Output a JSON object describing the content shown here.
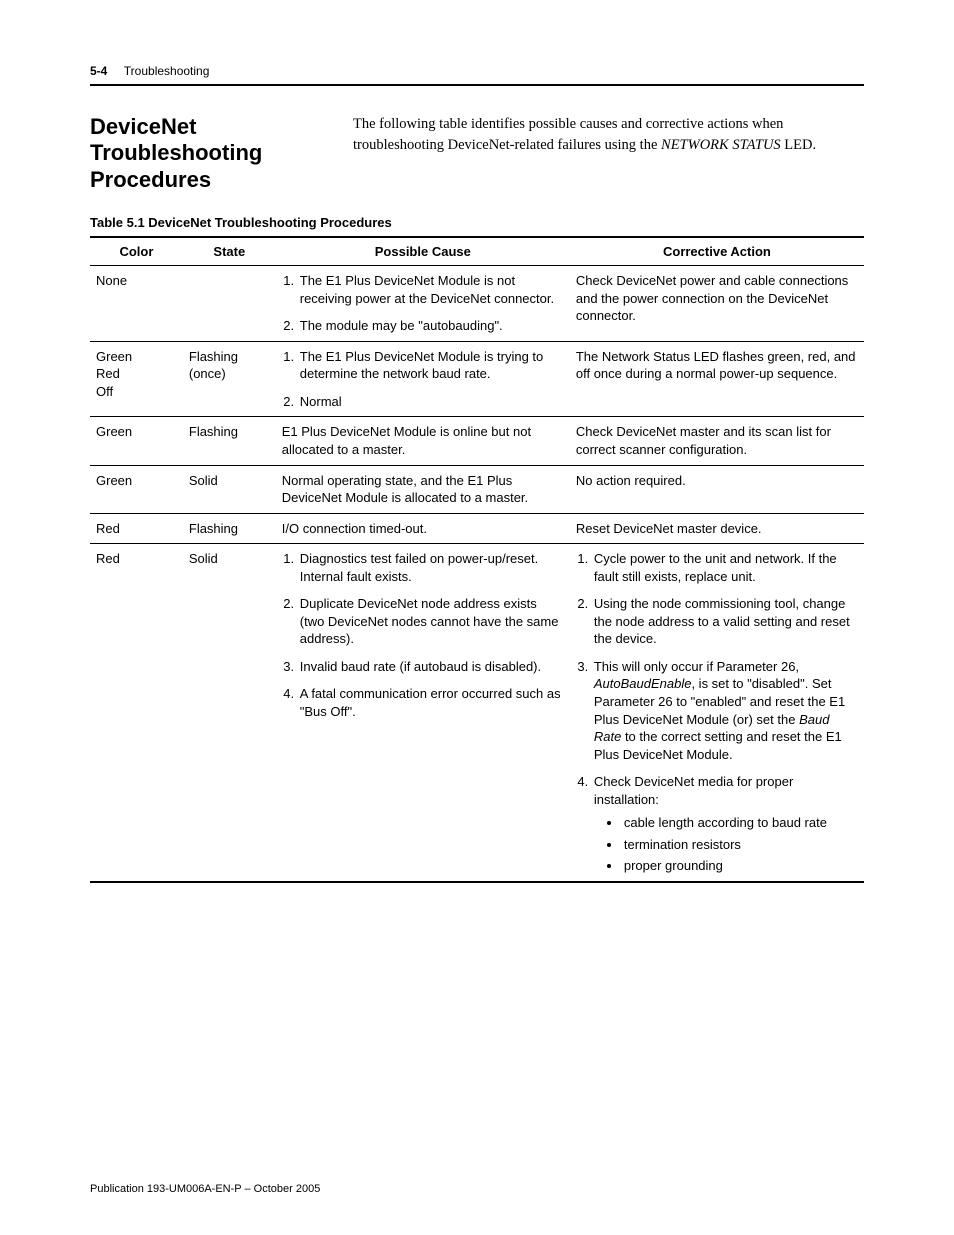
{
  "page": {
    "number": "5-4",
    "section": "Troubleshooting",
    "footer": "Publication 193-UM006A-EN-P – October 2005"
  },
  "section_heading": "DeviceNet Troubleshooting Procedures",
  "intro": {
    "pre": "The following table identifies possible causes and corrective actions when troubleshooting DeviceNet-related failures using the ",
    "led_name": "NETWORK STATUS",
    "post": " LED."
  },
  "table": {
    "caption": "Table 5.1  DeviceNet Troubleshooting Procedures",
    "columns": [
      "Color",
      "State",
      "Possible Cause",
      "Corrective Action"
    ],
    "col_widths_pct": [
      12,
      12,
      38,
      38
    ],
    "header_fontsize": 13,
    "cell_fontsize": 13,
    "border_color": "#000000",
    "rows": [
      {
        "color": "None",
        "state": "",
        "cause": {
          "type": "ol",
          "items": [
            "The E1 Plus DeviceNet Module is not receiving power at the DeviceNet connector.",
            "The module may be \"autobauding\"."
          ]
        },
        "action": {
          "type": "text",
          "text": "Check DeviceNet power and cable connections and the power connection on the DeviceNet connector."
        }
      },
      {
        "color": "Green\nRed\nOff",
        "state": "Flashing (once)",
        "cause": {
          "type": "ol",
          "items": [
            "The E1 Plus DeviceNet Module is trying to determine the network baud rate.",
            "Normal"
          ]
        },
        "action": {
          "type": "text",
          "text": "The Network Status LED flashes green, red, and off once during a normal power-up sequence."
        }
      },
      {
        "color": "Green",
        "state": "Flashing",
        "cause": {
          "type": "text",
          "text": "E1 Plus DeviceNet Module is online but not allocated to a master."
        },
        "action": {
          "type": "text",
          "text": "Check DeviceNet master and its scan list for correct scanner configuration."
        }
      },
      {
        "color": "Green",
        "state": "Solid",
        "cause": {
          "type": "text",
          "text": "Normal operating state, and the E1 Plus DeviceNet Module is allocated to a master."
        },
        "action": {
          "type": "text",
          "text": "No action required."
        }
      },
      {
        "color": "Red",
        "state": "Flashing",
        "cause": {
          "type": "text",
          "text": "I/O connection timed-out."
        },
        "action": {
          "type": "text",
          "text": "Reset DeviceNet master device."
        }
      },
      {
        "color": "Red",
        "state": "Solid",
        "cause": {
          "type": "ol",
          "items": [
            "Diagnostics test failed on power-up/reset. Internal fault exists.",
            "Duplicate DeviceNet node address exists (two DeviceNet nodes cannot have the same address).",
            "Invalid baud rate (if autobaud is disabled).",
            "A fatal communication error occurred such as \"Bus Off\"."
          ]
        },
        "action": {
          "type": "ol_rich",
          "items": [
            {
              "text": "Cycle power to the unit and network. If the fault still exists, replace unit."
            },
            {
              "text": "Using the node commissioning tool, change the node address to a valid setting and reset the device."
            },
            {
              "parts": [
                {
                  "t": "This will only occur if Parameter 26, "
                },
                {
                  "t": "AutoBaudEnable",
                  "italic": true
                },
                {
                  "t": ", is set to \"disabled\". Set Parameter 26 to \"enabled\" and reset the E1 Plus DeviceNet Module (or) set the "
                },
                {
                  "t": "Baud Rate",
                  "italic": true
                },
                {
                  "t": " to the correct setting and reset the E1 Plus DeviceNet Module."
                }
              ]
            },
            {
              "text": "Check DeviceNet media for proper installation:",
              "bullets": [
                "cable length according to baud rate",
                "termination resistors",
                "proper grounding"
              ]
            }
          ]
        }
      }
    ]
  }
}
